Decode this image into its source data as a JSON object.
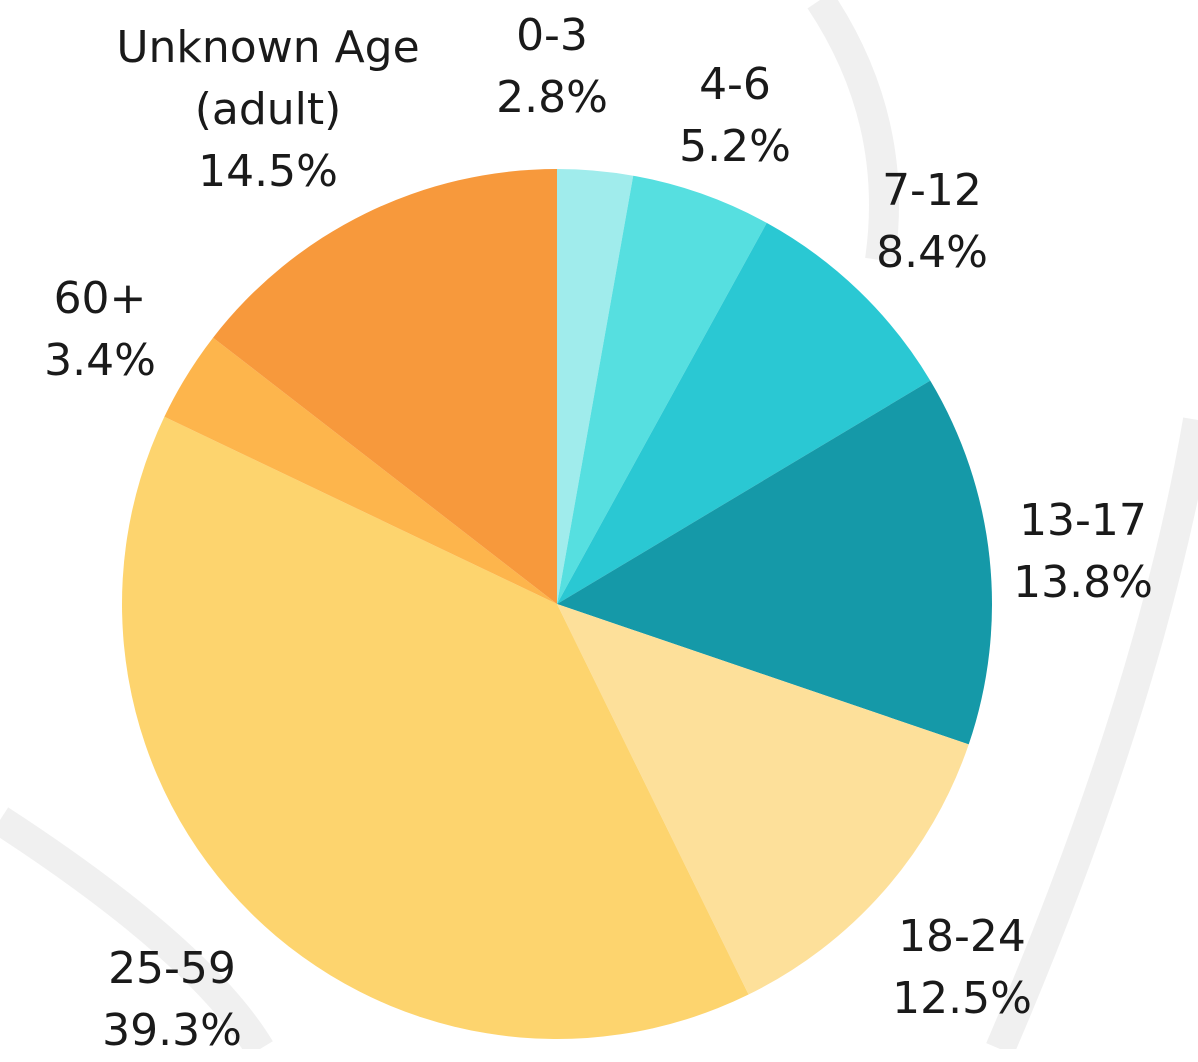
{
  "chart_data": {
    "type": "pie",
    "categories": [
      "0-3",
      "4-6",
      "7-12",
      "13-17",
      "18-24",
      "25-59",
      "60+",
      "Unknown Age (adult)"
    ],
    "values": [
      2.8,
      5.2,
      8.4,
      13.8,
      12.5,
      39.3,
      3.4,
      14.5
    ],
    "value_labels": [
      "2.8%",
      "5.2%",
      "8.4%",
      "13.8%",
      "12.5%",
      "39.3%",
      "3.4%",
      "14.5%"
    ],
    "colors": [
      "#a0ecec",
      "#56dfe0",
      "#2ac8d3",
      "#1599a8",
      "#fde09a",
      "#fdd46e",
      "#fdb54c",
      "#f7993c"
    ]
  }
}
